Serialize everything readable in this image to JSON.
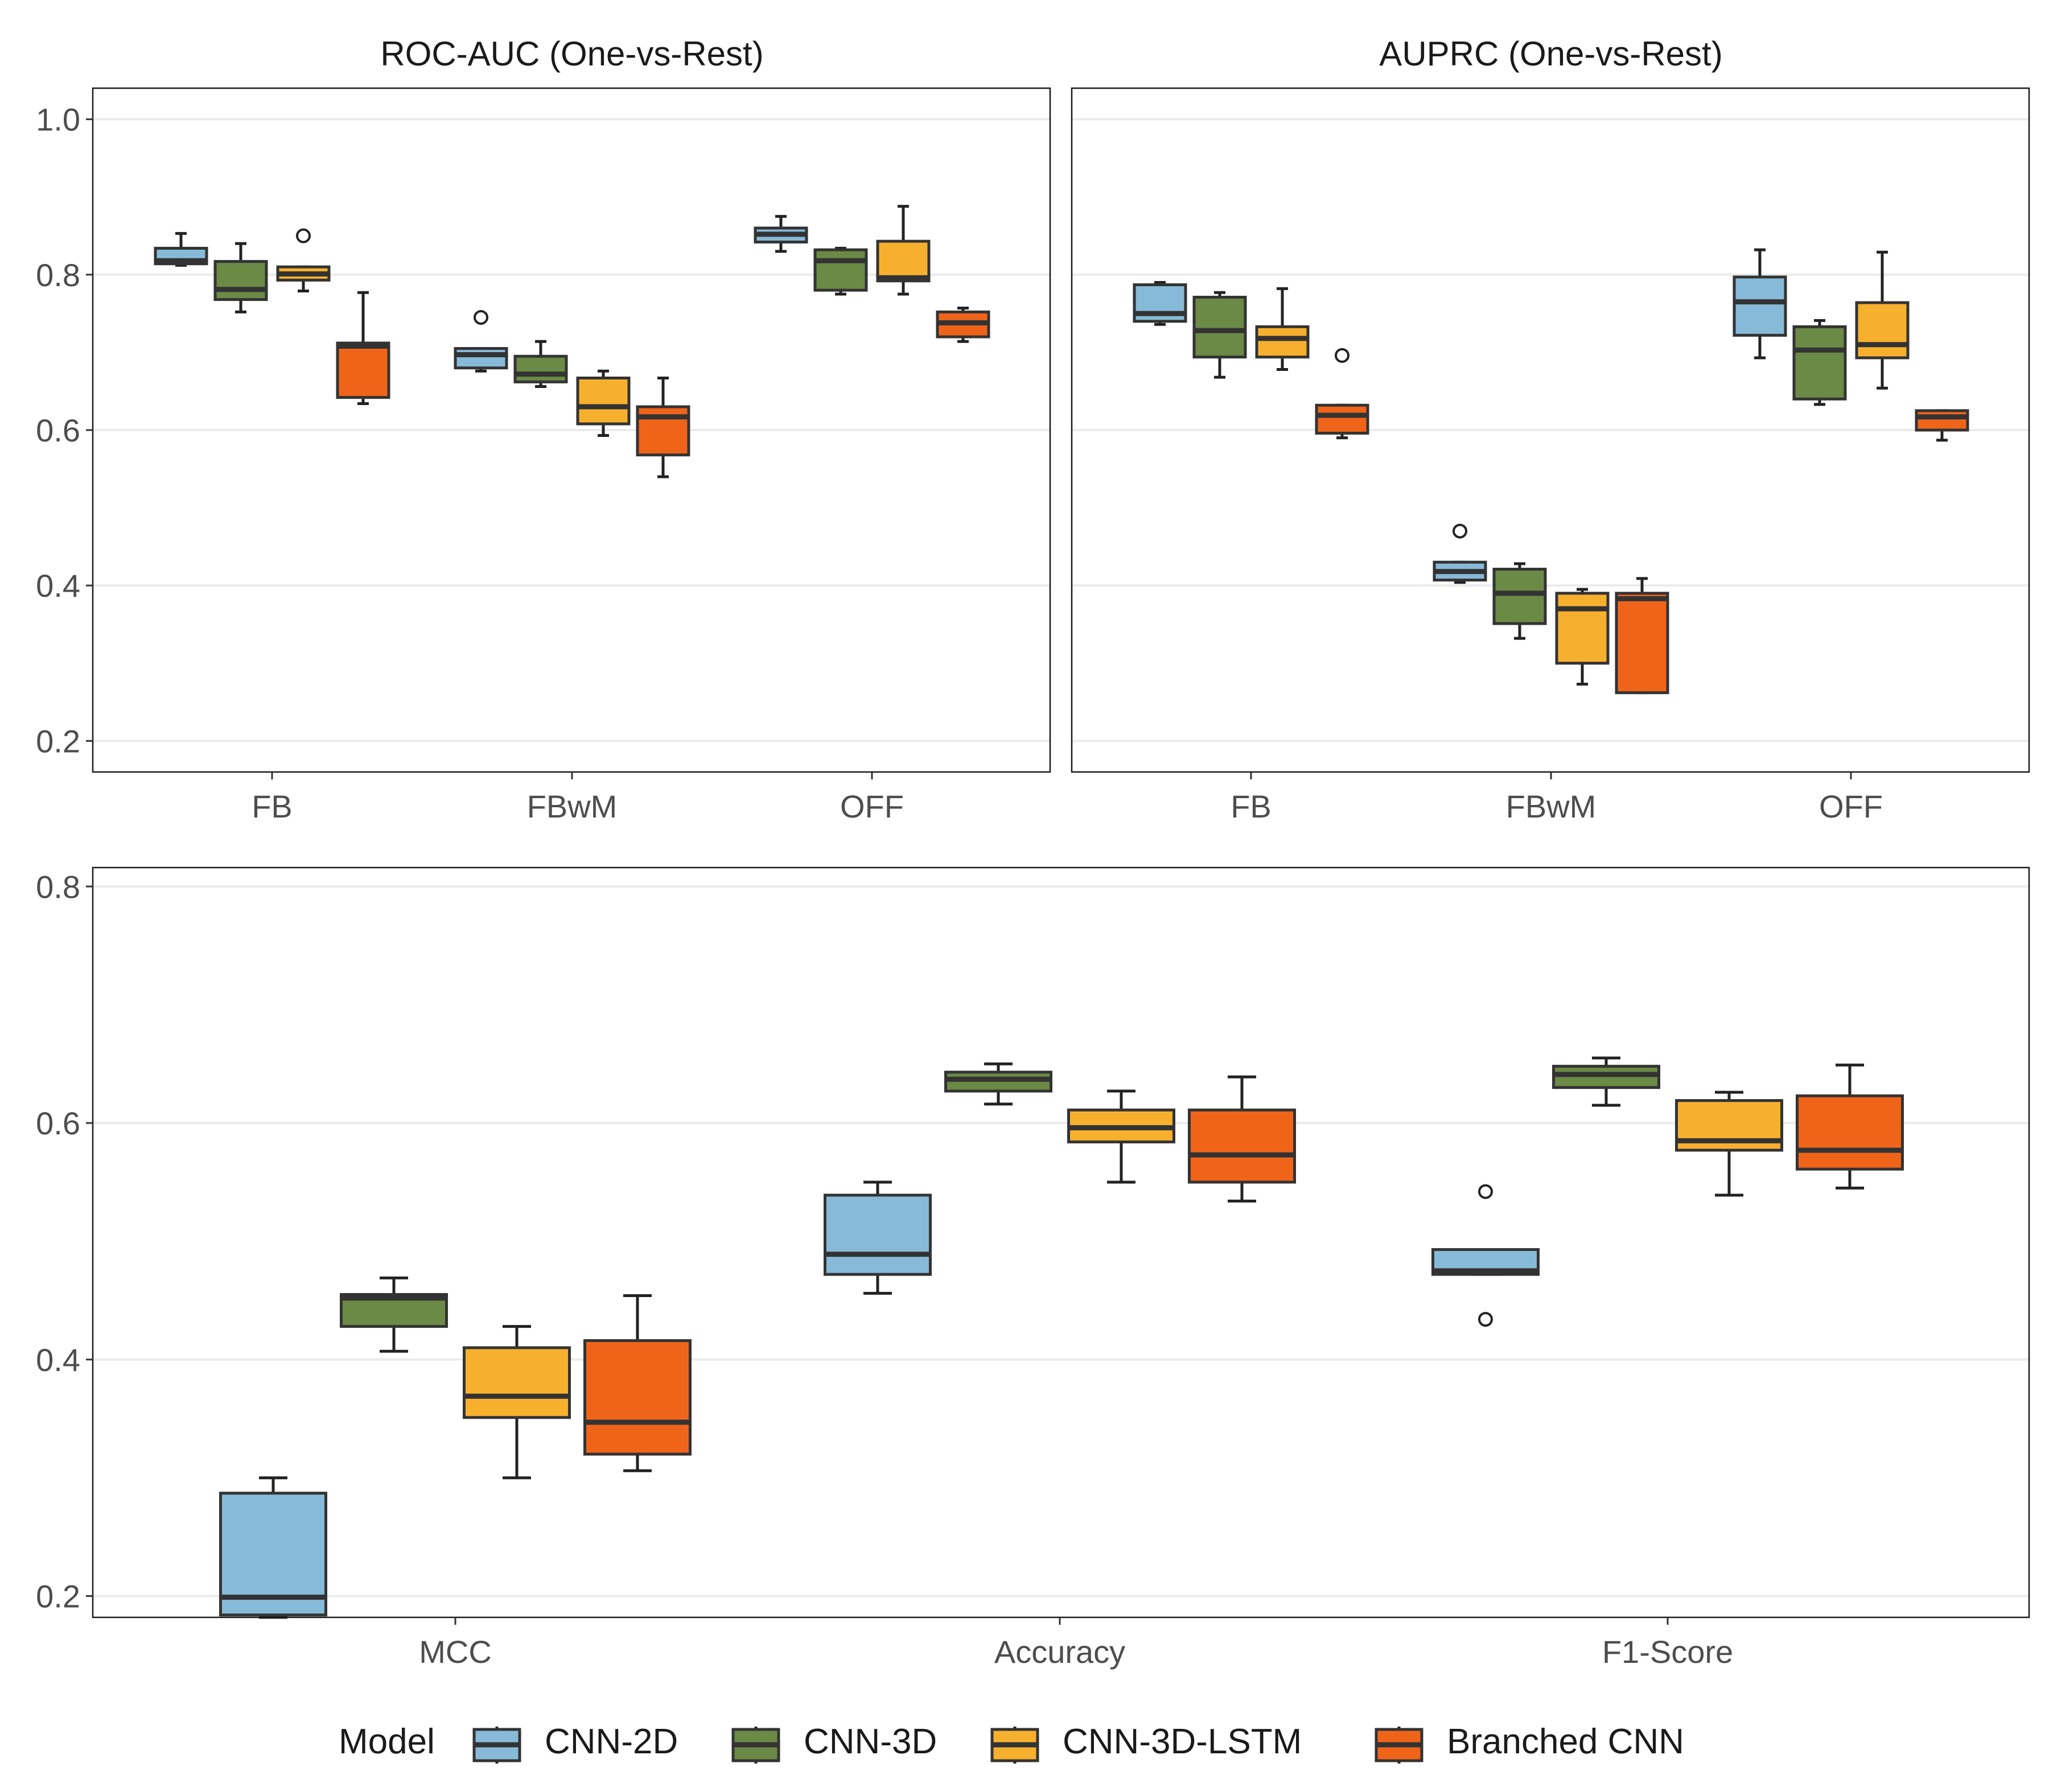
{
  "chart_data": [
    {
      "type": "boxplot",
      "title": "ROC-AUC (One-vs-Rest)",
      "categories": [
        "FB",
        "FBwM",
        "OFF"
      ],
      "ylim": [
        0.16,
        1.04
      ],
      "yticks": [
        0.2,
        0.4,
        0.6,
        0.8,
        1.0
      ],
      "ytick_labels": [
        "0.2",
        "0.4",
        "0.6",
        "0.8",
        "1.0"
      ],
      "grid": true,
      "series": [
        {
          "name": "CNN-2D",
          "boxes": [
            {
              "min": 0.812,
              "q1": 0.814,
              "median": 0.818,
              "q3": 0.834,
              "max": 0.853,
              "outliers": []
            },
            {
              "min": 0.676,
              "q1": 0.68,
              "median": 0.697,
              "q3": 0.705,
              "max": 0.705,
              "outliers": [
                0.745
              ]
            },
            {
              "min": 0.83,
              "q1": 0.842,
              "median": 0.852,
              "q3": 0.86,
              "max": 0.875,
              "outliers": []
            }
          ]
        },
        {
          "name": "CNN-3D",
          "boxes": [
            {
              "min": 0.752,
              "q1": 0.768,
              "median": 0.781,
              "q3": 0.817,
              "max": 0.84,
              "outliers": []
            },
            {
              "min": 0.656,
              "q1": 0.662,
              "median": 0.672,
              "q3": 0.695,
              "max": 0.714,
              "outliers": []
            },
            {
              "min": 0.775,
              "q1": 0.78,
              "median": 0.818,
              "q3": 0.832,
              "max": 0.834,
              "outliers": []
            }
          ]
        },
        {
          "name": "CNN-3D-LSTM",
          "boxes": [
            {
              "min": 0.779,
              "q1": 0.793,
              "median": 0.801,
              "q3": 0.81,
              "max": 0.81,
              "outliers": [
                0.85
              ]
            },
            {
              "min": 0.593,
              "q1": 0.608,
              "median": 0.63,
              "q3": 0.667,
              "max": 0.676,
              "outliers": []
            },
            {
              "min": 0.775,
              "q1": 0.792,
              "median": 0.796,
              "q3": 0.843,
              "max": 0.888,
              "outliers": []
            }
          ]
        },
        {
          "name": "Branched CNN",
          "boxes": [
            {
              "min": 0.634,
              "q1": 0.642,
              "median": 0.708,
              "q3": 0.712,
              "max": 0.777,
              "outliers": []
            },
            {
              "min": 0.54,
              "q1": 0.568,
              "median": 0.617,
              "q3": 0.63,
              "max": 0.667,
              "outliers": []
            },
            {
              "min": 0.714,
              "q1": 0.72,
              "median": 0.738,
              "q3": 0.752,
              "max": 0.757,
              "outliers": []
            }
          ]
        }
      ]
    },
    {
      "type": "boxplot",
      "title": "AUPRC (One-vs-Rest)",
      "categories": [
        "FB",
        "FBwM",
        "OFF"
      ],
      "ylim": [
        0.16,
        1.04
      ],
      "yticks": [
        0.2,
        0.4,
        0.6,
        0.8,
        1.0
      ],
      "ytick_labels": [],
      "grid": true,
      "series": [
        {
          "name": "CNN-2D",
          "boxes": [
            {
              "min": 0.736,
              "q1": 0.74,
              "median": 0.75,
              "q3": 0.787,
              "max": 0.79,
              "outliers": []
            },
            {
              "min": 0.404,
              "q1": 0.407,
              "median": 0.418,
              "q3": 0.43,
              "max": 0.43,
              "outliers": [
                0.47
              ]
            },
            {
              "min": 0.693,
              "q1": 0.722,
              "median": 0.765,
              "q3": 0.797,
              "max": 0.832,
              "outliers": []
            }
          ]
        },
        {
          "name": "CNN-3D",
          "boxes": [
            {
              "min": 0.668,
              "q1": 0.694,
              "median": 0.728,
              "q3": 0.771,
              "max": 0.777,
              "outliers": []
            },
            {
              "min": 0.332,
              "q1": 0.351,
              "median": 0.39,
              "q3": 0.421,
              "max": 0.428,
              "outliers": []
            },
            {
              "min": 0.633,
              "q1": 0.64,
              "median": 0.703,
              "q3": 0.733,
              "max": 0.741,
              "outliers": []
            }
          ]
        },
        {
          "name": "CNN-3D-LSTM",
          "boxes": [
            {
              "min": 0.678,
              "q1": 0.694,
              "median": 0.718,
              "q3": 0.733,
              "max": 0.782,
              "outliers": []
            },
            {
              "min": 0.273,
              "q1": 0.3,
              "median": 0.37,
              "q3": 0.39,
              "max": 0.395,
              "outliers": []
            },
            {
              "min": 0.654,
              "q1": 0.693,
              "median": 0.71,
              "q3": 0.764,
              "max": 0.829,
              "outliers": []
            }
          ]
        },
        {
          "name": "Branched CNN",
          "boxes": [
            {
              "min": 0.59,
              "q1": 0.596,
              "median": 0.619,
              "q3": 0.632,
              "max": 0.632,
              "outliers": [
                0.696
              ]
            },
            {
              "min": 0.262,
              "q1": 0.262,
              "median": 0.383,
              "q3": 0.39,
              "max": 0.409,
              "outliers": []
            },
            {
              "min": 0.587,
              "q1": 0.6,
              "median": 0.617,
              "q3": 0.625,
              "max": 0.625,
              "outliers": []
            }
          ]
        }
      ]
    },
    {
      "type": "boxplot",
      "title": "",
      "categories": [
        "MCC",
        "Accuracy",
        "F1-Score"
      ],
      "ylim": [
        0.182,
        0.816
      ],
      "yticks": [
        0.2,
        0.4,
        0.6,
        0.8
      ],
      "ytick_labels": [
        "0.2",
        "0.4",
        "0.6",
        "0.8"
      ],
      "grid": true,
      "series": [
        {
          "name": "CNN-2D",
          "boxes": [
            {
              "min": 0.182,
              "q1": 0.184,
              "median": 0.199,
              "q3": 0.287,
              "max": 0.3,
              "outliers": []
            },
            {
              "min": 0.456,
              "q1": 0.472,
              "median": 0.489,
              "q3": 0.539,
              "max": 0.55,
              "outliers": []
            },
            {
              "min": 0.472,
              "q1": 0.472,
              "median": 0.475,
              "q3": 0.493,
              "max": 0.493,
              "outliers": [
                0.542,
                0.434
              ]
            }
          ]
        },
        {
          "name": "CNN-3D",
          "boxes": [
            {
              "min": 0.407,
              "q1": 0.428,
              "median": 0.452,
              "q3": 0.455,
              "max": 0.469,
              "outliers": []
            },
            {
              "min": 0.616,
              "q1": 0.627,
              "median": 0.637,
              "q3": 0.643,
              "max": 0.65,
              "outliers": []
            },
            {
              "min": 0.615,
              "q1": 0.63,
              "median": 0.641,
              "q3": 0.648,
              "max": 0.655,
              "outliers": []
            }
          ]
        },
        {
          "name": "CNN-3D-LSTM",
          "boxes": [
            {
              "min": 0.3,
              "q1": 0.351,
              "median": 0.369,
              "q3": 0.41,
              "max": 0.428,
              "outliers": []
            },
            {
              "min": 0.55,
              "q1": 0.584,
              "median": 0.596,
              "q3": 0.611,
              "max": 0.627,
              "outliers": []
            },
            {
              "min": 0.539,
              "q1": 0.577,
              "median": 0.585,
              "q3": 0.619,
              "max": 0.626,
              "outliers": []
            }
          ]
        },
        {
          "name": "Branched CNN",
          "boxes": [
            {
              "min": 0.306,
              "q1": 0.32,
              "median": 0.347,
              "q3": 0.416,
              "max": 0.454,
              "outliers": []
            },
            {
              "min": 0.534,
              "q1": 0.55,
              "median": 0.573,
              "q3": 0.611,
              "max": 0.639,
              "outliers": []
            },
            {
              "min": 0.545,
              "q1": 0.561,
              "median": 0.577,
              "q3": 0.623,
              "max": 0.649,
              "outliers": []
            }
          ]
        }
      ]
    }
  ],
  "legend": {
    "title": "Model",
    "position": "bottom",
    "entries": [
      {
        "label": "CNN-2D",
        "color": "#87bad8"
      },
      {
        "label": "CNN-3D",
        "color": "#6b8a45"
      },
      {
        "label": "CNN-3D-LSTM",
        "color": "#f7b02e"
      },
      {
        "label": "Branched CNN",
        "color": "#f0641a"
      }
    ]
  }
}
